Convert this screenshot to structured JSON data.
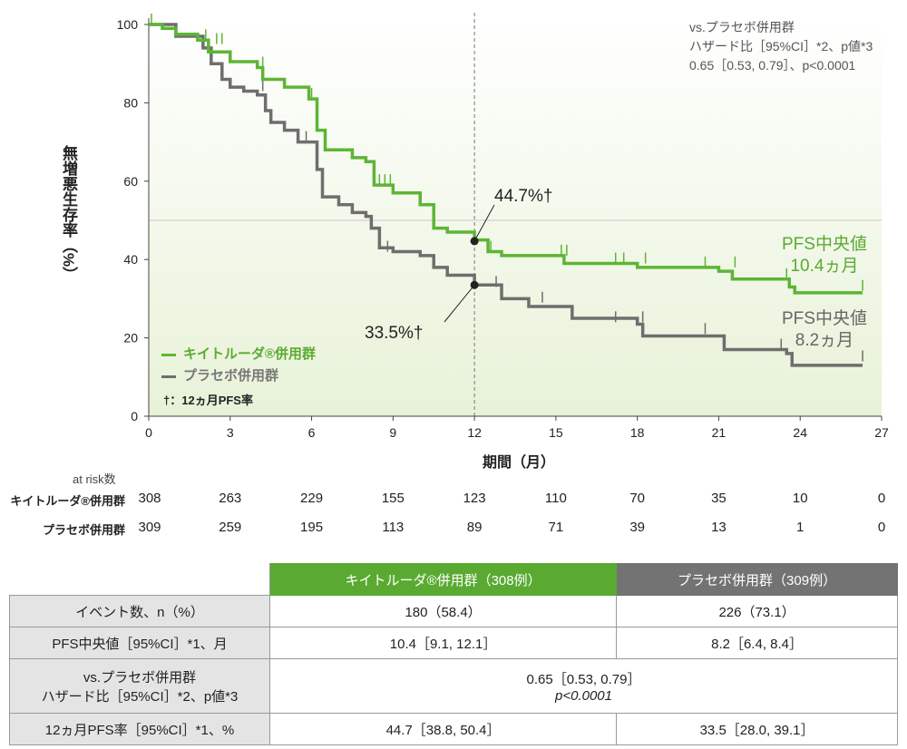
{
  "chart_data": {
    "type": "line",
    "subtype": "kaplan-meier",
    "xlabel": "期間（月）",
    "ylabel": "無増悪生存率（%）",
    "xlim": [
      0,
      27
    ],
    "ylim": [
      0,
      100
    ],
    "xticks": [
      0,
      3,
      6,
      9,
      12,
      15,
      18,
      21,
      24,
      27
    ],
    "yticks": [
      0,
      20,
      40,
      60,
      80,
      100
    ],
    "reference_line_x": 12,
    "reference_line_y": 50,
    "colors": {
      "pembro": "#5db535",
      "placebo": "#6e6e6e"
    },
    "series": [
      {
        "name": "キイトルーダ®併用群",
        "key": "pembro",
        "points": [
          [
            0,
            100
          ],
          [
            0.5,
            99
          ],
          [
            1,
            97.5
          ],
          [
            1.8,
            96
          ],
          [
            2.2,
            93
          ],
          [
            3,
            90.5
          ],
          [
            4,
            89
          ],
          [
            4.2,
            86
          ],
          [
            5,
            84
          ],
          [
            5.9,
            81
          ],
          [
            6.2,
            73
          ],
          [
            6.5,
            68
          ],
          [
            7.5,
            66
          ],
          [
            8,
            65
          ],
          [
            8.3,
            59
          ],
          [
            9,
            57
          ],
          [
            10,
            54
          ],
          [
            10.5,
            48
          ],
          [
            11,
            47
          ],
          [
            12,
            45
          ],
          [
            12.5,
            42
          ],
          [
            13,
            41
          ],
          [
            15.3,
            39
          ],
          [
            18,
            38
          ],
          [
            21,
            37
          ],
          [
            21.5,
            35
          ],
          [
            23.6,
            33
          ],
          [
            23.8,
            31.5
          ],
          [
            26.3,
            31.5
          ]
        ],
        "censors": [
          [
            0.1,
            100
          ],
          [
            2.1,
            96
          ],
          [
            2.5,
            95
          ],
          [
            2.7,
            95
          ],
          [
            4.2,
            89
          ],
          [
            6,
            81
          ],
          [
            8.5,
            59
          ],
          [
            8.7,
            59
          ],
          [
            8.9,
            59
          ],
          [
            12.6,
            42
          ],
          [
            15.2,
            41
          ],
          [
            15.4,
            41
          ],
          [
            17.2,
            39
          ],
          [
            17.5,
            39
          ],
          [
            18.3,
            39
          ],
          [
            20.5,
            38
          ],
          [
            21.6,
            38
          ],
          [
            23.5,
            35
          ],
          [
            26.3,
            32
          ]
        ]
      },
      {
        "name": "プラセボ併用群",
        "key": "placebo",
        "points": [
          [
            0,
            100
          ],
          [
            1,
            97
          ],
          [
            2,
            94
          ],
          [
            2.3,
            90
          ],
          [
            2.7,
            86
          ],
          [
            3,
            84
          ],
          [
            3.5,
            83
          ],
          [
            4,
            82
          ],
          [
            4.3,
            78
          ],
          [
            4.5,
            75
          ],
          [
            5,
            73
          ],
          [
            5.5,
            70
          ],
          [
            6,
            70
          ],
          [
            6.2,
            63
          ],
          [
            6.4,
            56
          ],
          [
            7,
            54
          ],
          [
            7.5,
            52
          ],
          [
            8,
            51
          ],
          [
            8.2,
            48
          ],
          [
            8.5,
            43
          ],
          [
            9,
            42
          ],
          [
            10,
            41
          ],
          [
            10.5,
            38
          ],
          [
            11,
            36
          ],
          [
            12,
            33.5
          ],
          [
            13,
            30
          ],
          [
            14,
            28
          ],
          [
            15.3,
            28
          ],
          [
            15.6,
            25
          ],
          [
            18,
            23.5
          ],
          [
            18.2,
            20.5
          ],
          [
            21,
            20.5
          ],
          [
            21.2,
            17
          ],
          [
            23.5,
            16
          ],
          [
            23.7,
            13
          ],
          [
            26.3,
            13
          ]
        ],
        "censors": [
          [
            4.2,
            83
          ],
          [
            5.8,
            70
          ],
          [
            8.8,
            42
          ],
          [
            12.8,
            33
          ],
          [
            14.5,
            29
          ],
          [
            17.2,
            24
          ],
          [
            18.2,
            24
          ],
          [
            20.5,
            21
          ],
          [
            23.3,
            17
          ],
          [
            26.3,
            14
          ]
        ]
      }
    ],
    "annotations": {
      "pembro_12m": "44.7%†",
      "placebo_12m": "33.5%†",
      "pembro_12m_value": 44.7,
      "placebo_12m_value": 33.5,
      "pembro_median": [
        "PFS中央値",
        "10.4ヵ月"
      ],
      "placebo_median": [
        "PFS中央値",
        "8.2ヵ月"
      ],
      "hr_box": [
        "vs.プラセボ併用群",
        "ハザード比［95%CI］*2、p値*3",
        "0.65［0.53, 0.79］、p<0.0001"
      ],
      "dagger_note": "†：12ヵ月PFS率"
    },
    "legend": [
      "キイトルーダ®併用群",
      "プラセボ併用群"
    ],
    "legend_position": "bottom-left"
  },
  "at_risk": {
    "title": "at risk数",
    "rows": [
      {
        "label": "キイトルーダ®併用群",
        "values": [
          308,
          263,
          229,
          155,
          123,
          110,
          70,
          35,
          10,
          0
        ]
      },
      {
        "label": "プラセボ併用群",
        "values": [
          309,
          259,
          195,
          113,
          89,
          71,
          39,
          13,
          1,
          0
        ]
      }
    ]
  },
  "table": {
    "headers": [
      "キイトルーダ®併用群（308例）",
      "プラセボ併用群（309例）"
    ],
    "rows": [
      {
        "label": "イベント数、n（%）",
        "a": "180（58.4）",
        "b": "226（73.1）"
      },
      {
        "label": "PFS中央値［95%CI］*1、月",
        "a": "10.4［9.1, 12.1］",
        "b": "8.2［6.4, 8.4］"
      },
      {
        "label": "vs.プラセボ併用群",
        "label2": "ハザード比［95%CI］*2、p値*3",
        "merged": "0.65［0.53, 0.79］",
        "merged2": "p<0.0001"
      },
      {
        "label": "12ヵ月PFS率［95%CI］*1、%",
        "a": "44.7［38.8, 50.4］",
        "b": "33.5［28.0, 39.1］"
      }
    ]
  }
}
